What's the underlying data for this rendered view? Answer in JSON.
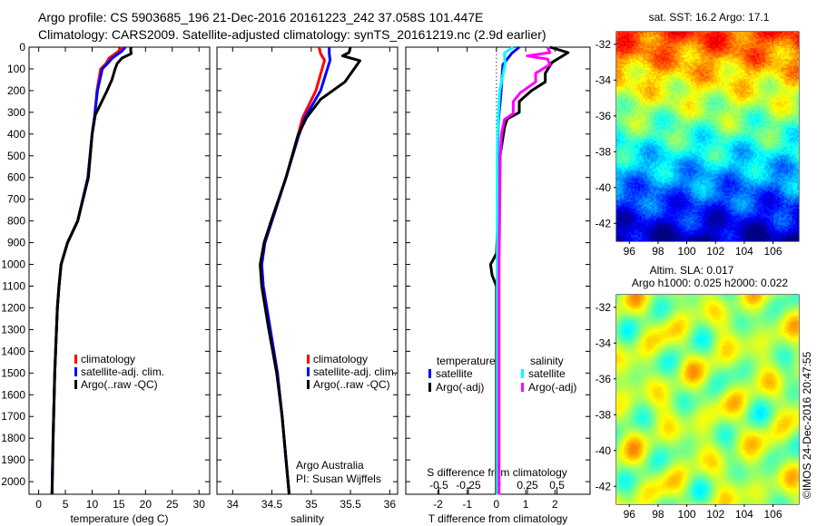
{
  "title_line1": "Argo profile: CS 5903685_196 21-Dec-2016 20161223_242 37.058S 101.447E",
  "title_line2": "Climatology: CARS2009. Satellite-adjusted climatology: synTS_20161219.nc (2.9d earlier)",
  "credit": "Argo Australia",
  "pi": "PI: Susan Wijffels",
  "copyright": "©IMOS 24-Dec-2016 20:47:55",
  "colors": {
    "climatology": "#ff0000",
    "satellite": "#0000ff",
    "argo": "#000000",
    "s_satellite": "#00ffff",
    "s_argo": "#ff00ff"
  },
  "chart_data": [
    {
      "type": "line",
      "id": "temperature",
      "xlabel": "temperature (deg C)",
      "xlim": [
        -1.8,
        32
      ],
      "ylim": [
        0,
        2058
      ],
      "yticks": [
        0,
        100,
        200,
        300,
        400,
        500,
        600,
        700,
        800,
        900,
        1000,
        1100,
        1200,
        1300,
        1400,
        1500,
        1600,
        1700,
        1800,
        1900,
        2000
      ],
      "xticks": [
        0,
        5,
        10,
        15,
        20,
        25,
        30
      ],
      "legend": [
        "climatology",
        "satellite-adj. clim.",
        "Argo(..raw -QC)"
      ],
      "series": [
        {
          "name": "climatology",
          "color": "#ff0000",
          "depth": [
            0,
            20,
            50,
            75,
            100,
            200,
            312,
            400,
            600,
            800,
            900,
            1000,
            1100,
            1200,
            1500,
            1800,
            2060
          ],
          "values": [
            15.5,
            14.9,
            13.2,
            12.6,
            11.6,
            10.9,
            10.5,
            10.0,
            9.2,
            7.3,
            5.4,
            4.2,
            3.8,
            3.5,
            3.0,
            2.7,
            2.5
          ]
        },
        {
          "name": "satellite-adj. clim.",
          "color": "#0000ff",
          "depth": [
            0,
            20,
            50,
            75,
            100,
            200,
            312,
            400,
            600,
            800,
            900,
            1000,
            1100,
            1200,
            1500,
            1800,
            2060
          ],
          "values": [
            16.2,
            15.5,
            13.8,
            12.9,
            11.9,
            11.0,
            10.5,
            10.0,
            9.2,
            7.3,
            5.4,
            4.2,
            3.8,
            3.5,
            3.0,
            2.7,
            2.5
          ]
        },
        {
          "name": "Argo(..raw -QC)",
          "color": "#000000",
          "depth": [
            0,
            10,
            30,
            50,
            75,
            100,
            150,
            200,
            312,
            400,
            600,
            800,
            900,
            1000,
            1100,
            1200,
            1500,
            1800,
            2060
          ],
          "values": [
            17.3,
            17.2,
            17.3,
            15.6,
            14.7,
            14.3,
            13.7,
            12.8,
            10.6,
            10.0,
            9.3,
            7.3,
            5.4,
            4.2,
            3.8,
            3.5,
            3.0,
            2.7,
            2.5
          ]
        }
      ]
    },
    {
      "type": "line",
      "id": "salinity",
      "xlabel": "salinity",
      "xlim": [
        33.8,
        36.1
      ],
      "ylim": [
        0,
        2058
      ],
      "xticks": [
        34,
        34.5,
        35,
        35.5,
        36
      ],
      "legend": [
        "climatology",
        "satellite-adj. clim.",
        "Argo(..raw -QC)"
      ],
      "series": [
        {
          "name": "climatology",
          "color": "#ff0000",
          "depth": [
            0,
            30,
            60,
            200,
            325,
            408,
            600,
            800,
            900,
            1000,
            1100,
            1300,
            1500,
            1700,
            1900,
            2060
          ],
          "values": [
            35.1,
            35.12,
            35.17,
            35.06,
            34.89,
            34.83,
            34.68,
            34.5,
            34.41,
            34.37,
            34.39,
            34.48,
            34.57,
            34.63,
            34.68,
            34.72
          ]
        },
        {
          "name": "satellite-adj. clim.",
          "color": "#0000ff",
          "depth": [
            0,
            30,
            60,
            200,
            325,
            408,
            600,
            800,
            900,
            1000,
            1100,
            1300,
            1500,
            1700,
            1900,
            2060
          ],
          "values": [
            35.23,
            35.23,
            35.24,
            35.12,
            34.92,
            34.84,
            34.68,
            34.5,
            34.41,
            34.37,
            34.39,
            34.48,
            34.57,
            34.63,
            34.68,
            34.72
          ]
        },
        {
          "name": "Argo(..raw -QC)",
          "color": "#000000",
          "depth": [
            0,
            25,
            40,
            62,
            160,
            240,
            325,
            408,
            600,
            800,
            900,
            1000,
            1100,
            1300,
            1500,
            1700,
            1900,
            2060
          ],
          "values": [
            35.5,
            35.48,
            35.4,
            35.62,
            35.43,
            35.12,
            34.94,
            34.83,
            34.68,
            34.49,
            34.4,
            34.35,
            34.37,
            34.46,
            34.56,
            34.63,
            34.68,
            34.72
          ]
        }
      ]
    },
    {
      "type": "line",
      "id": "difference",
      "xlabel": "T difference from climatology",
      "x2label": "S difference from climatology",
      "xlim": [
        -3.1,
        3.2
      ],
      "x2lim": [
        -0.78,
        0.78
      ],
      "xticks": [
        -2,
        -1,
        0,
        1,
        2
      ],
      "x2ticks": [
        -0.5,
        -0.25,
        0,
        0.25,
        0.5
      ],
      "legend_headers": [
        "temperature",
        "salinity"
      ],
      "legend": [
        "satellite",
        "Argo(-adj)",
        "satellite",
        "Argo(-adj)"
      ],
      "series": [
        {
          "name": "T satellite",
          "axis": "T",
          "color": "#0000ff",
          "depth": [
            0,
            27,
            80,
            220,
            350,
            500,
            1000,
            2060
          ],
          "values": [
            0.78,
            0.53,
            0.22,
            0.15,
            0.06,
            0.04,
            0.03,
            0.03
          ]
        },
        {
          "name": "T Argo(-adj)",
          "axis": "T",
          "color": "#000000",
          "depth": [
            0,
            25,
            70,
            120,
            160,
            200,
            250,
            300,
            330,
            367,
            500,
            800,
            950,
            1000,
            1050,
            1100,
            1500,
            2060
          ],
          "values": [
            1.83,
            2.45,
            1.9,
            1.67,
            1.67,
            1.2,
            0.78,
            0.78,
            0.37,
            0.28,
            0.12,
            0.05,
            0,
            -0.2,
            -0.15,
            0,
            0,
            0
          ]
        },
        {
          "name": "S satellite",
          "axis": "S",
          "color": "#00ffff",
          "depth": [
            0,
            27,
            80,
            200,
            350,
            500,
            1000,
            2060
          ],
          "values": [
            0.13,
            0.055,
            0.06,
            0.015,
            0.0,
            -0.005,
            -0.005,
            -0.005
          ]
        },
        {
          "name": "S Argo(-adj)",
          "axis": "S",
          "color": "#ff00ff",
          "depth": [
            0,
            25,
            40,
            55,
            80,
            120,
            160,
            210,
            250,
            305,
            333,
            400,
            500,
            1000,
            2060
          ],
          "values": [
            0.42,
            0.44,
            0.25,
            0.42,
            0.44,
            0.32,
            0.32,
            0.19,
            0.13,
            0.13,
            0.055,
            0.03,
            0.02,
            0.01,
            0.01
          ]
        }
      ]
    },
    {
      "type": "heatmap",
      "id": "sst_map",
      "title": "sat. SST: 16.2  Argo: 17.1",
      "xticks": [
        96,
        98,
        100,
        102,
        104,
        106
      ],
      "yticks": [
        -32,
        -34,
        -36,
        -38,
        -40,
        -42
      ],
      "xlim": [
        95.1,
        107.8
      ],
      "ylim": [
        -43.0,
        -31.3
      ]
    },
    {
      "type": "heatmap",
      "id": "sla_map",
      "title": "Altim. SLA: 0.017",
      "subtitle": "Argo h1000: 0.025 h2000: 0.022",
      "xticks": [
        96,
        98,
        100,
        102,
        104,
        106
      ],
      "yticks": [
        -32,
        -34,
        -36,
        -38,
        -40,
        -42
      ],
      "xlim": [
        95.1,
        107.8
      ],
      "ylim": [
        -43.0,
        -31.3
      ]
    }
  ]
}
